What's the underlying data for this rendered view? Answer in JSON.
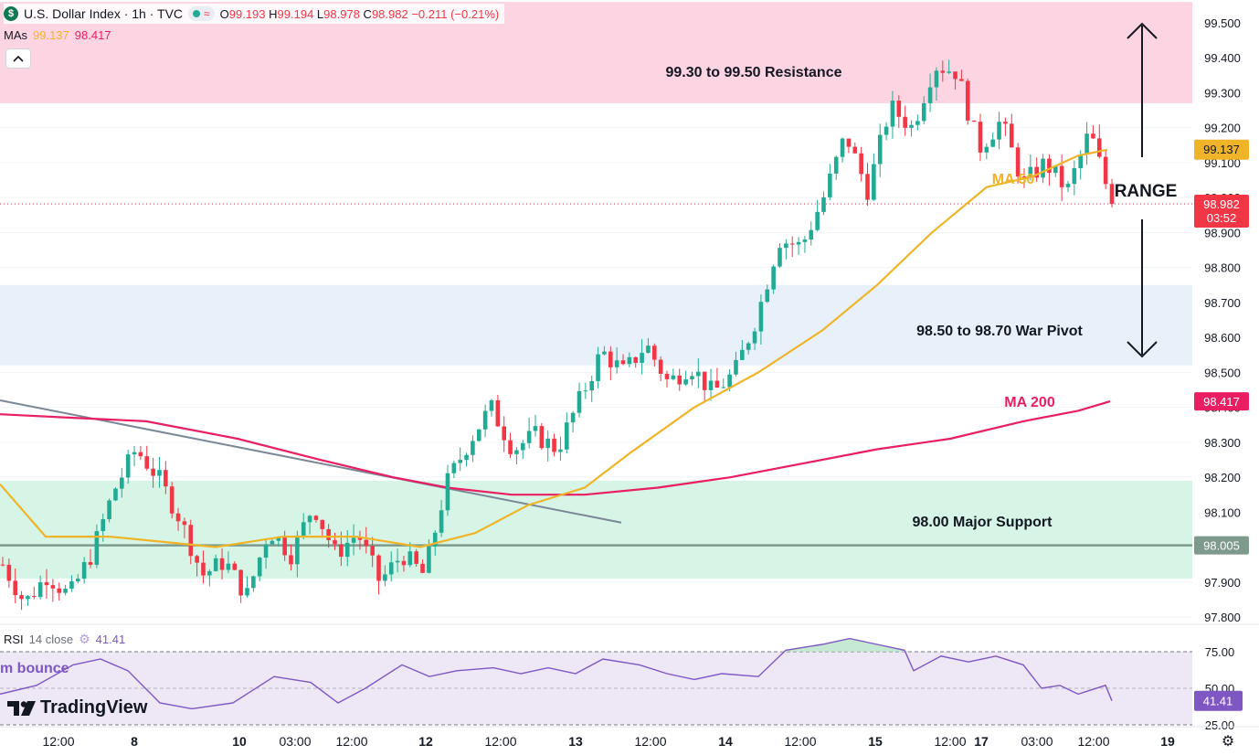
{
  "header": {
    "logo_letter": "$",
    "title": "U.S. Dollar Index · 1h · TVC",
    "wave_icon": "≈",
    "ohlc": {
      "o_label": "O",
      "o": "99.193",
      "h_label": "H",
      "h": "99.194",
      "l_label": "L",
      "l": "98.978",
      "c_label": "C",
      "c": "98.982",
      "change": "−0.211 (−0.21%)"
    }
  },
  "ma_legend": {
    "label": "MAs",
    "ma50": "99.137",
    "ma200": "98.417"
  },
  "collapse_icon": "chevron-up-icon",
  "colors": {
    "up": "#22ab94",
    "down": "#f23645",
    "ma50": "#f0b429",
    "ma200": "#e91e63",
    "resistance_zone": "#fdd5e2",
    "pivot_zone": "#e8f1fa",
    "support_zone": "#d6f5e6",
    "support_line": "#7d9a8c",
    "trendline": "#7b8796",
    "rsi_line": "#7e57c2",
    "rsi_band": "#ede7f6"
  },
  "chart_data": {
    "type": "candlestick",
    "ylim": [
      97.78,
      99.56
    ],
    "y_ticks": [
      "99.500",
      "99.400",
      "99.300",
      "99.200",
      "99.100",
      "99.000",
      "98.900",
      "98.800",
      "98.700",
      "98.600",
      "98.500",
      "98.400",
      "98.300",
      "98.200",
      "98.100",
      "98.000",
      "97.900",
      "97.800"
    ],
    "x_ticks": [
      "12:00",
      "8",
      "10",
      "03:00",
      "12:00",
      "12",
      "12:00",
      "13",
      "12:00",
      "14",
      "12:00",
      "15",
      "12:00",
      "17",
      "03:00",
      "12:00",
      "19"
    ],
    "waypoints": [
      [
        97.95,
        "r"
      ],
      [
        97.84,
        "r"
      ],
      [
        97.92,
        "r"
      ],
      [
        97.86,
        "r"
      ],
      [
        97.98,
        "r"
      ],
      [
        98.16,
        "r"
      ],
      [
        98.28,
        "r"
      ],
      [
        98.2,
        "r"
      ],
      [
        98.08,
        "r"
      ],
      [
        97.92,
        "r"
      ],
      [
        97.96,
        "r"
      ],
      [
        97.86,
        "r"
      ],
      [
        98.05,
        "r"
      ],
      [
        97.98,
        "r"
      ],
      [
        98.12,
        "r"
      ],
      [
        97.98,
        "r"
      ],
      [
        98.04,
        "r"
      ],
      [
        97.9,
        "r"
      ],
      [
        97.98,
        "r"
      ],
      [
        97.92,
        "r"
      ],
      [
        98.18,
        "r"
      ],
      [
        98.3,
        "r"
      ],
      [
        98.4,
        "r"
      ],
      [
        98.28,
        "r"
      ],
      [
        98.32,
        "r"
      ],
      [
        98.28,
        "r"
      ],
      [
        98.42,
        "r"
      ],
      [
        98.56,
        "r"
      ],
      [
        98.5,
        "r"
      ],
      [
        98.58,
        "r"
      ],
      [
        98.47,
        "r"
      ],
      [
        98.52,
        "r"
      ],
      [
        98.44,
        "r"
      ],
      [
        98.5,
        "r"
      ],
      [
        98.66,
        "r"
      ],
      [
        98.88,
        "r"
      ],
      [
        98.86,
        "r"
      ],
      [
        99.0,
        "r"
      ],
      [
        99.18,
        "r"
      ],
      [
        99.02,
        "r"
      ],
      [
        99.26,
        "r"
      ],
      [
        99.2,
        "r"
      ],
      [
        99.38,
        "r"
      ],
      [
        99.36,
        "r"
      ],
      [
        99.14,
        "r"
      ],
      [
        99.22,
        "r"
      ],
      [
        99.04,
        "r"
      ],
      [
        99.1,
        "r"
      ],
      [
        99.02,
        "r"
      ],
      [
        99.19,
        "r"
      ],
      [
        98.982,
        "r"
      ]
    ],
    "ma50": [
      [
        0,
        98.18
      ],
      [
        50,
        98.03
      ],
      [
        120,
        98.03
      ],
      [
        236,
        98.0
      ],
      [
        310,
        98.03
      ],
      [
        390,
        98.03
      ],
      [
        460,
        98.0
      ],
      [
        520,
        98.04
      ],
      [
        578,
        98.12
      ],
      [
        640,
        98.17
      ],
      [
        690,
        98.27
      ],
      [
        760,
        98.4
      ],
      [
        830,
        98.5
      ],
      [
        900,
        98.62
      ],
      [
        960,
        98.75
      ],
      [
        1020,
        98.9
      ],
      [
        1080,
        99.03
      ],
      [
        1130,
        99.06
      ],
      [
        1180,
        99.12
      ],
      [
        1212,
        99.137
      ]
    ],
    "ma200": [
      [
        0,
        98.38
      ],
      [
        80,
        98.37
      ],
      [
        160,
        98.36
      ],
      [
        260,
        98.31
      ],
      [
        350,
        98.25
      ],
      [
        430,
        98.2
      ],
      [
        490,
        98.17
      ],
      [
        560,
        98.15
      ],
      [
        640,
        98.15
      ],
      [
        720,
        98.17
      ],
      [
        800,
        98.2
      ],
      [
        880,
        98.24
      ],
      [
        960,
        98.28
      ],
      [
        1040,
        98.31
      ],
      [
        1120,
        98.36
      ],
      [
        1180,
        98.39
      ],
      [
        1215,
        98.417
      ]
    ],
    "ma50_label": "MA 50",
    "ma200_label": "MA 200",
    "last_price": "98.982",
    "countdown": "03:52",
    "support_price": "98.005",
    "zones": [
      {
        "label": "99.30 to 99.50 Resistance",
        "from": 99.27,
        "to": 99.56
      },
      {
        "label": "98.50 to 98.70 War Pivot",
        "from": 98.52,
        "to": 98.75
      },
      {
        "label": "98.00 Major Support",
        "from": 97.91,
        "to": 98.19
      }
    ],
    "range_label": "RANGE",
    "support_line": 98.005,
    "trendline": [
      [
        0,
        98.42
      ],
      [
        680,
        98.07
      ]
    ],
    "rsi": {
      "label": "RSI",
      "params": "14 close",
      "value": "41.41",
      "ticks": [
        "75.00",
        "50.00",
        "25.00"
      ],
      "upper": 70,
      "lower": 30,
      "series": [
        [
          0,
          46
        ],
        [
          40,
          52
        ],
        [
          80,
          66
        ],
        [
          110,
          70
        ],
        [
          140,
          62
        ],
        [
          175,
          40
        ],
        [
          210,
          36
        ],
        [
          255,
          40
        ],
        [
          300,
          58
        ],
        [
          340,
          54
        ],
        [
          370,
          40
        ],
        [
          400,
          50
        ],
        [
          440,
          66
        ],
        [
          470,
          58
        ],
        [
          500,
          62
        ],
        [
          540,
          64
        ],
        [
          570,
          60
        ],
        [
          600,
          64
        ],
        [
          630,
          60
        ],
        [
          660,
          70
        ],
        [
          700,
          66
        ],
        [
          730,
          60
        ],
        [
          760,
          56
        ],
        [
          790,
          60
        ],
        [
          830,
          58
        ],
        [
          860,
          76
        ],
        [
          900,
          80
        ],
        [
          930,
          84
        ],
        [
          960,
          80
        ],
        [
          990,
          76
        ],
        [
          1000,
          62
        ],
        [
          1030,
          72
        ],
        [
          1060,
          68
        ],
        [
          1090,
          72
        ],
        [
          1120,
          66
        ],
        [
          1140,
          50
        ],
        [
          1160,
          52
        ],
        [
          1180,
          46
        ],
        [
          1210,
          52
        ],
        [
          1217,
          41.41
        ]
      ]
    }
  },
  "annotations": {
    "bounce_text": "m bounce"
  },
  "footer": {
    "logo_text": "TradingView"
  }
}
